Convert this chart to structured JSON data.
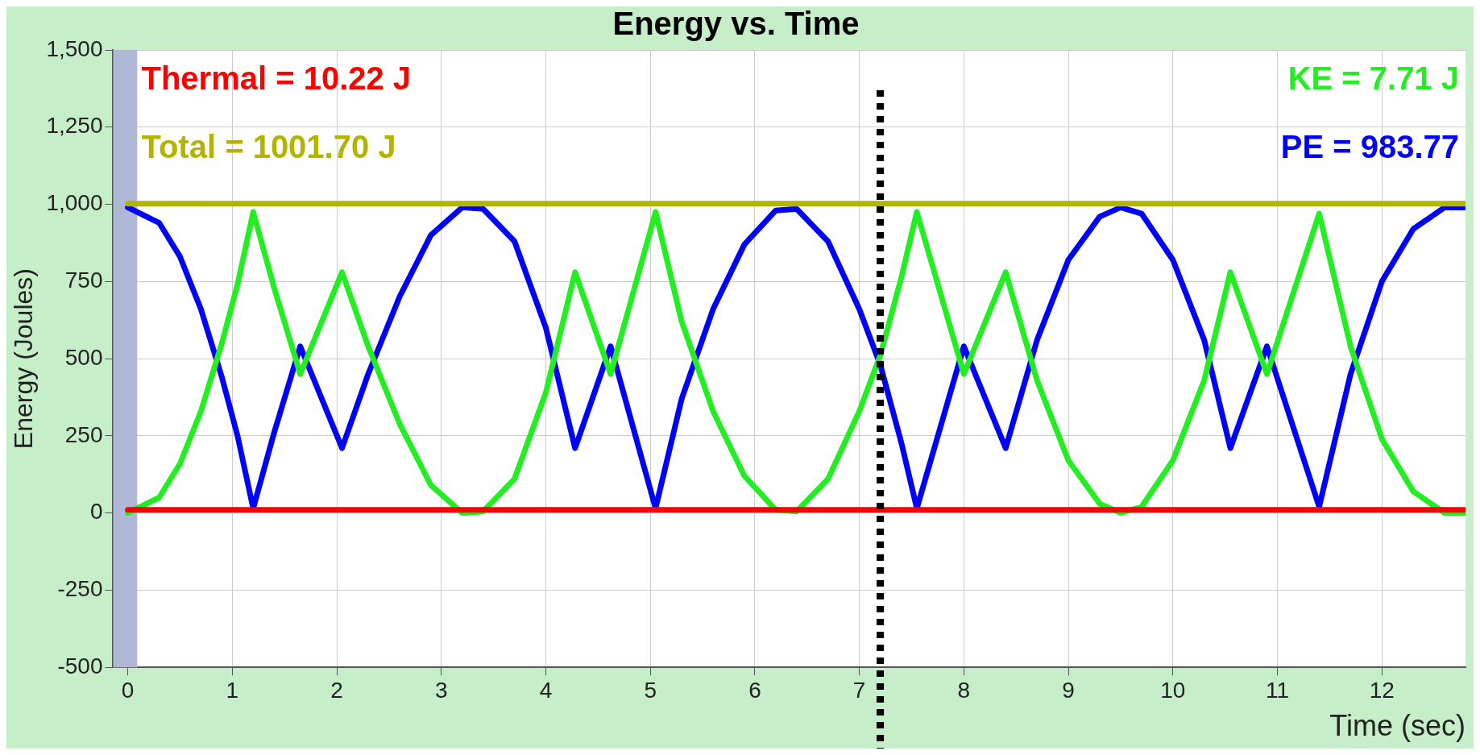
{
  "chart_data": {
    "type": "line",
    "title": "Energy vs. Time",
    "xlabel": "Time (sec)",
    "ylabel": "Energy (Joules)",
    "x": [
      0,
      0.3,
      0.5,
      0.7,
      0.9,
      1.05,
      1.2,
      1.4,
      1.65,
      2.05,
      2.3,
      2.6,
      2.9,
      3.2,
      3.4,
      3.7,
      4.0,
      4.28,
      4.62,
      5.05,
      5.3,
      5.6,
      5.9,
      6.2,
      6.4,
      6.7,
      7.0,
      7.2,
      7.4,
      7.55,
      8.0,
      8.4,
      8.7,
      9.0,
      9.3,
      9.5,
      9.7,
      10.0,
      10.3,
      10.55,
      10.9,
      11.4,
      11.7,
      12.0,
      12.3,
      12.6,
      12.8
    ],
    "series": [
      {
        "color": "#ff0000",
        "values": [
          10,
          10,
          10,
          10,
          10,
          10,
          10,
          10,
          10,
          10,
          10,
          10,
          10,
          10,
          10,
          10,
          10,
          10,
          10,
          10,
          10,
          10,
          10,
          10,
          10,
          10,
          10,
          10,
          10,
          10,
          10,
          10,
          10,
          10,
          10,
          10,
          10,
          10,
          10,
          10,
          10,
          10,
          10,
          10,
          10,
          10,
          10
        ]
      },
      {
        "color": "#b3b300",
        "values": [
          1002,
          1002,
          1002,
          1002,
          1002,
          1002,
          1002,
          1002,
          1002,
          1002,
          1002,
          1002,
          1002,
          1002,
          1002,
          1002,
          1002,
          1002,
          1002,
          1002,
          1002,
          1002,
          1002,
          1002,
          1002,
          1002,
          1002,
          1002,
          1002,
          1002,
          1002,
          1002,
          1002,
          1002,
          1002,
          1002,
          1002,
          1002,
          1002,
          1002,
          1002,
          1002,
          1002,
          1002,
          1002,
          1002,
          1002
        ]
      },
      {
        "color": "#22ee22",
        "values": [
          0,
          50,
          160,
          330,
          550,
          740,
          975,
          730,
          450,
          780,
          540,
          290,
          90,
          0,
          5,
          110,
          390,
          780,
          450,
          975,
          620,
          330,
          120,
          10,
          5,
          110,
          330,
          510,
          760,
          975,
          450,
          780,
          430,
          170,
          30,
          0,
          20,
          170,
          430,
          780,
          450,
          970,
          540,
          240,
          70,
          0,
          0
        ]
      },
      {
        "color": "#0000ff",
        "values": [
          990,
          940,
          830,
          660,
          440,
          250,
          15,
          260,
          540,
          210,
          450,
          700,
          900,
          990,
          985,
          880,
          600,
          210,
          540,
          15,
          370,
          660,
          870,
          980,
          985,
          880,
          660,
          480,
          230,
          15,
          540,
          210,
          560,
          820,
          960,
          990,
          970,
          820,
          560,
          210,
          540,
          20,
          450,
          750,
          920,
          990,
          990
        ]
      }
    ],
    "annotations": [
      "Thermal = 10.22 J",
      "Total = 1001.70 J",
      "KE = 7.71 J",
      "PE = 983.77"
    ],
    "xlim": [
      -0.14,
      12.8
    ],
    "xticks": [
      0,
      1,
      2,
      3,
      4,
      5,
      6,
      7,
      8,
      9,
      10,
      11,
      12
    ],
    "ylim": [
      -500,
      1500
    ],
    "yticks": [
      -500,
      -250,
      0,
      250,
      500,
      750,
      {
        "value": 1000,
        "label": "1,000"
      },
      {
        "value": 1250,
        "label": "1,250"
      },
      {
        "value": 1500,
        "label": "1,500"
      }
    ],
    "bands": [
      {
        "axis": "x",
        "from": -0.14,
        "to": 0.09,
        "color": "#b0b8d8"
      }
    ],
    "ref_lines": [
      {
        "axis": "x",
        "value": 7.2,
        "color": "#000000",
        "line_style": "dotted"
      }
    ],
    "grid": true,
    "legend": false
  }
}
